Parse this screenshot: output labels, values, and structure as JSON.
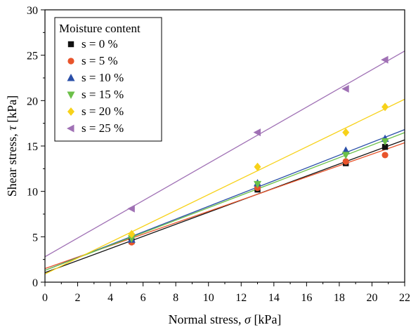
{
  "chart_data": {
    "type": "scatter",
    "title": "",
    "xlabel_main": "Normal stress, ",
    "xlabel_symbol": "σ",
    "xlabel_unit": " [kPa]",
    "ylabel_main": "Shear stress, ",
    "ylabel_symbol": "τ",
    "ylabel_unit": " [kPa]",
    "xlim": [
      0,
      22
    ],
    "ylim": [
      0,
      30
    ],
    "xticks": [
      0,
      2,
      4,
      6,
      8,
      10,
      12,
      14,
      16,
      18,
      20,
      22
    ],
    "yticks": [
      0,
      5,
      10,
      15,
      20,
      25,
      30
    ],
    "grid": false,
    "legend_title": "Moisture content",
    "legend_position": "top-left",
    "x": [
      5.3,
      13.0,
      18.4,
      20.8
    ],
    "series": [
      {
        "name": "s = 0 %",
        "marker": "square",
        "color": "#111111",
        "values": [
          4.5,
          10.2,
          13.1,
          14.9
        ],
        "fit": {
          "intercept": 1.05,
          "slope": 0.665
        }
      },
      {
        "name": "s = 5 %",
        "marker": "circle",
        "color": "#e8542b",
        "values": [
          4.4,
          10.4,
          13.3,
          14.0
        ],
        "fit": {
          "intercept": 1.5,
          "slope": 0.63
        }
      },
      {
        "name": "s = 10 %",
        "marker": "triangle-up",
        "color": "#2a4fa8",
        "values": [
          4.7,
          10.9,
          14.5,
          15.8
        ],
        "fit": {
          "intercept": 1.3,
          "slope": 0.705
        }
      },
      {
        "name": "s = 15 %",
        "marker": "triangle-down",
        "color": "#6cc04a",
        "values": [
          4.8,
          10.8,
          14.0,
          15.5
        ],
        "fit": {
          "intercept": 1.3,
          "slope": 0.69
        }
      },
      {
        "name": "s = 20 %",
        "marker": "diamond",
        "color": "#f7d21a",
        "values": [
          5.3,
          12.7,
          16.5,
          19.3
        ],
        "fit": {
          "intercept": 0.9,
          "slope": 0.875
        }
      },
      {
        "name": "s = 25 %",
        "marker": "triangle-left",
        "color": "#a071b5",
        "values": [
          8.1,
          16.5,
          21.3,
          24.5
        ],
        "fit": {
          "intercept": 2.8,
          "slope": 1.03
        }
      }
    ]
  }
}
